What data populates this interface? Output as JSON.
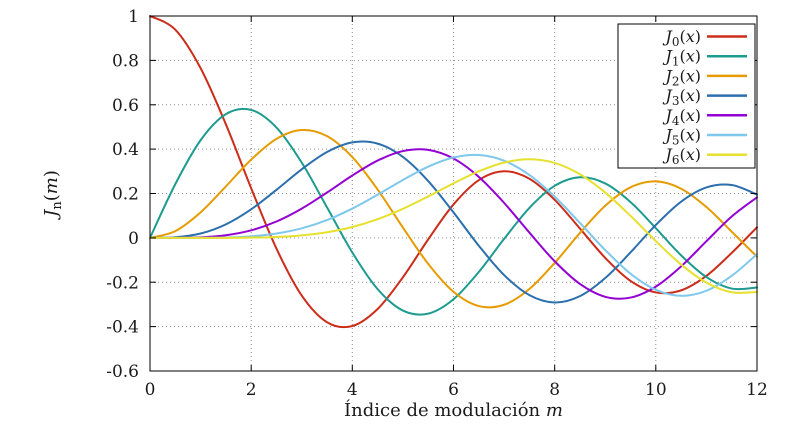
{
  "chart_data": {
    "type": "line",
    "title": "",
    "xlabel": {
      "text": "Índice de modulación",
      "var": "m"
    },
    "ylabel": {
      "main": "J",
      "sub": "n",
      "arg": "m"
    },
    "xlim": [
      0,
      12
    ],
    "ylim": [
      -0.6,
      1
    ],
    "xticks": [
      0,
      2,
      4,
      6,
      8,
      10,
      12
    ],
    "yticks": [
      -0.6,
      -0.4,
      -0.2,
      0,
      0.2,
      0.4,
      0.6,
      0.8,
      1
    ],
    "grid": true,
    "legend_position": "top-right",
    "colors": {
      "axis": "#000000",
      "grid": "#909090",
      "text": "#1a1a1a",
      "background": "#ffffff",
      "legend_border": "#000000",
      "legend_fill": "#ffffff"
    },
    "x": [
      0,
      0.5,
      1,
      1.5,
      2,
      2.5,
      3,
      3.5,
      4,
      4.5,
      5,
      5.5,
      6,
      6.5,
      7,
      7.5,
      8,
      8.5,
      9,
      9.5,
      10,
      10.5,
      11,
      11.5,
      12
    ],
    "series": [
      {
        "name": "J0",
        "label": {
          "main": "J",
          "sub": "0",
          "arg": "x"
        },
        "color": "#cc2d1a",
        "values": [
          1,
          0.9385,
          0.7652,
          0.5118,
          0.2239,
          -0.0484,
          -0.2601,
          -0.3801,
          -0.3971,
          -0.3205,
          -0.1776,
          -0.0068,
          0.1506,
          0.2601,
          0.3001,
          0.2663,
          0.1717,
          0.0419,
          -0.0903,
          -0.1939,
          -0.2459,
          -0.2366,
          -0.1712,
          -0.0677,
          0.0477
        ]
      },
      {
        "name": "J1",
        "label": {
          "main": "J",
          "sub": "1",
          "arg": "x"
        },
        "color": "#1e9b8f",
        "values": [
          0,
          0.2423,
          0.4401,
          0.5579,
          0.5767,
          0.4971,
          0.3391,
          0.1374,
          -0.066,
          -0.2311,
          -0.3276,
          -0.3414,
          -0.2767,
          -0.1538,
          -0.0047,
          0.1352,
          0.2346,
          0.2731,
          0.2453,
          0.1613,
          0.0435,
          -0.0789,
          -0.1768,
          -0.2284,
          -0.2234
        ]
      },
      {
        "name": "J2",
        "label": {
          "main": "J",
          "sub": "2",
          "arg": "x"
        },
        "color": "#e69b00",
        "values": [
          0,
          0.0306,
          0.1149,
          0.2321,
          0.3528,
          0.4461,
          0.4861,
          0.4586,
          0.3641,
          0.2178,
          0.0466,
          -0.1173,
          -0.2429,
          -0.3074,
          -0.3014,
          -0.2303,
          -0.113,
          0.0223,
          0.1448,
          0.2279,
          0.2546,
          0.2216,
          0.139,
          0.028,
          -0.0849
        ]
      },
      {
        "name": "J3",
        "label": {
          "main": "J",
          "sub": "3",
          "arg": "x"
        },
        "color": "#2c6fad",
        "values": [
          0,
          0.0026,
          0.0196,
          0.061,
          0.1289,
          0.2166,
          0.3091,
          0.3868,
          0.4302,
          0.4247,
          0.3648,
          0.2561,
          0.1148,
          -0.0353,
          -0.1676,
          -0.2581,
          -0.2911,
          -0.2626,
          -0.1809,
          -0.0653,
          0.0584,
          0.1633,
          0.2273,
          0.2381,
          0.1951
        ]
      },
      {
        "name": "J4",
        "label": {
          "main": "J",
          "sub": "4",
          "arg": "x"
        },
        "color": "#9400d3",
        "values": [
          0,
          0.0002,
          0.0025,
          0.0118,
          0.034,
          0.0738,
          0.132,
          0.2044,
          0.2811,
          0.3484,
          0.3912,
          0.3967,
          0.3576,
          0.2748,
          0.1578,
          0.0238,
          -0.1054,
          -0.2077,
          -0.2655,
          -0.2691,
          -0.2196,
          -0.1283,
          -0.015,
          0.0962,
          0.1825
        ]
      },
      {
        "name": "J5",
        "label": {
          "main": "J",
          "sub": "5",
          "arg": "x"
        },
        "color": "#7ec8ec",
        "values": [
          0,
          0,
          0.0002,
          0.0018,
          0.007,
          0.0195,
          0.043,
          0.0804,
          0.1321,
          0.1947,
          0.2611,
          0.3209,
          0.3621,
          0.3736,
          0.3479,
          0.2835,
          0.1858,
          0.0671,
          -0.055,
          -0.1613,
          -0.2341,
          -0.2611,
          -0.2383,
          -0.1711,
          -0.0735
        ]
      },
      {
        "name": "J6",
        "label": {
          "main": "J",
          "sub": "6",
          "arg": "x"
        },
        "color": "#e6e02e",
        "values": [
          0,
          0,
          0,
          0.0002,
          0.0012,
          0.0042,
          0.0114,
          0.0254,
          0.0491,
          0.0843,
          0.131,
          0.1868,
          0.2458,
          0.2999,
          0.3392,
          0.3541,
          0.3376,
          0.2867,
          0.2043,
          0.0993,
          -0.0145,
          -0.1203,
          -0.2016,
          -0.2451,
          -0.2437
        ]
      }
    ]
  }
}
